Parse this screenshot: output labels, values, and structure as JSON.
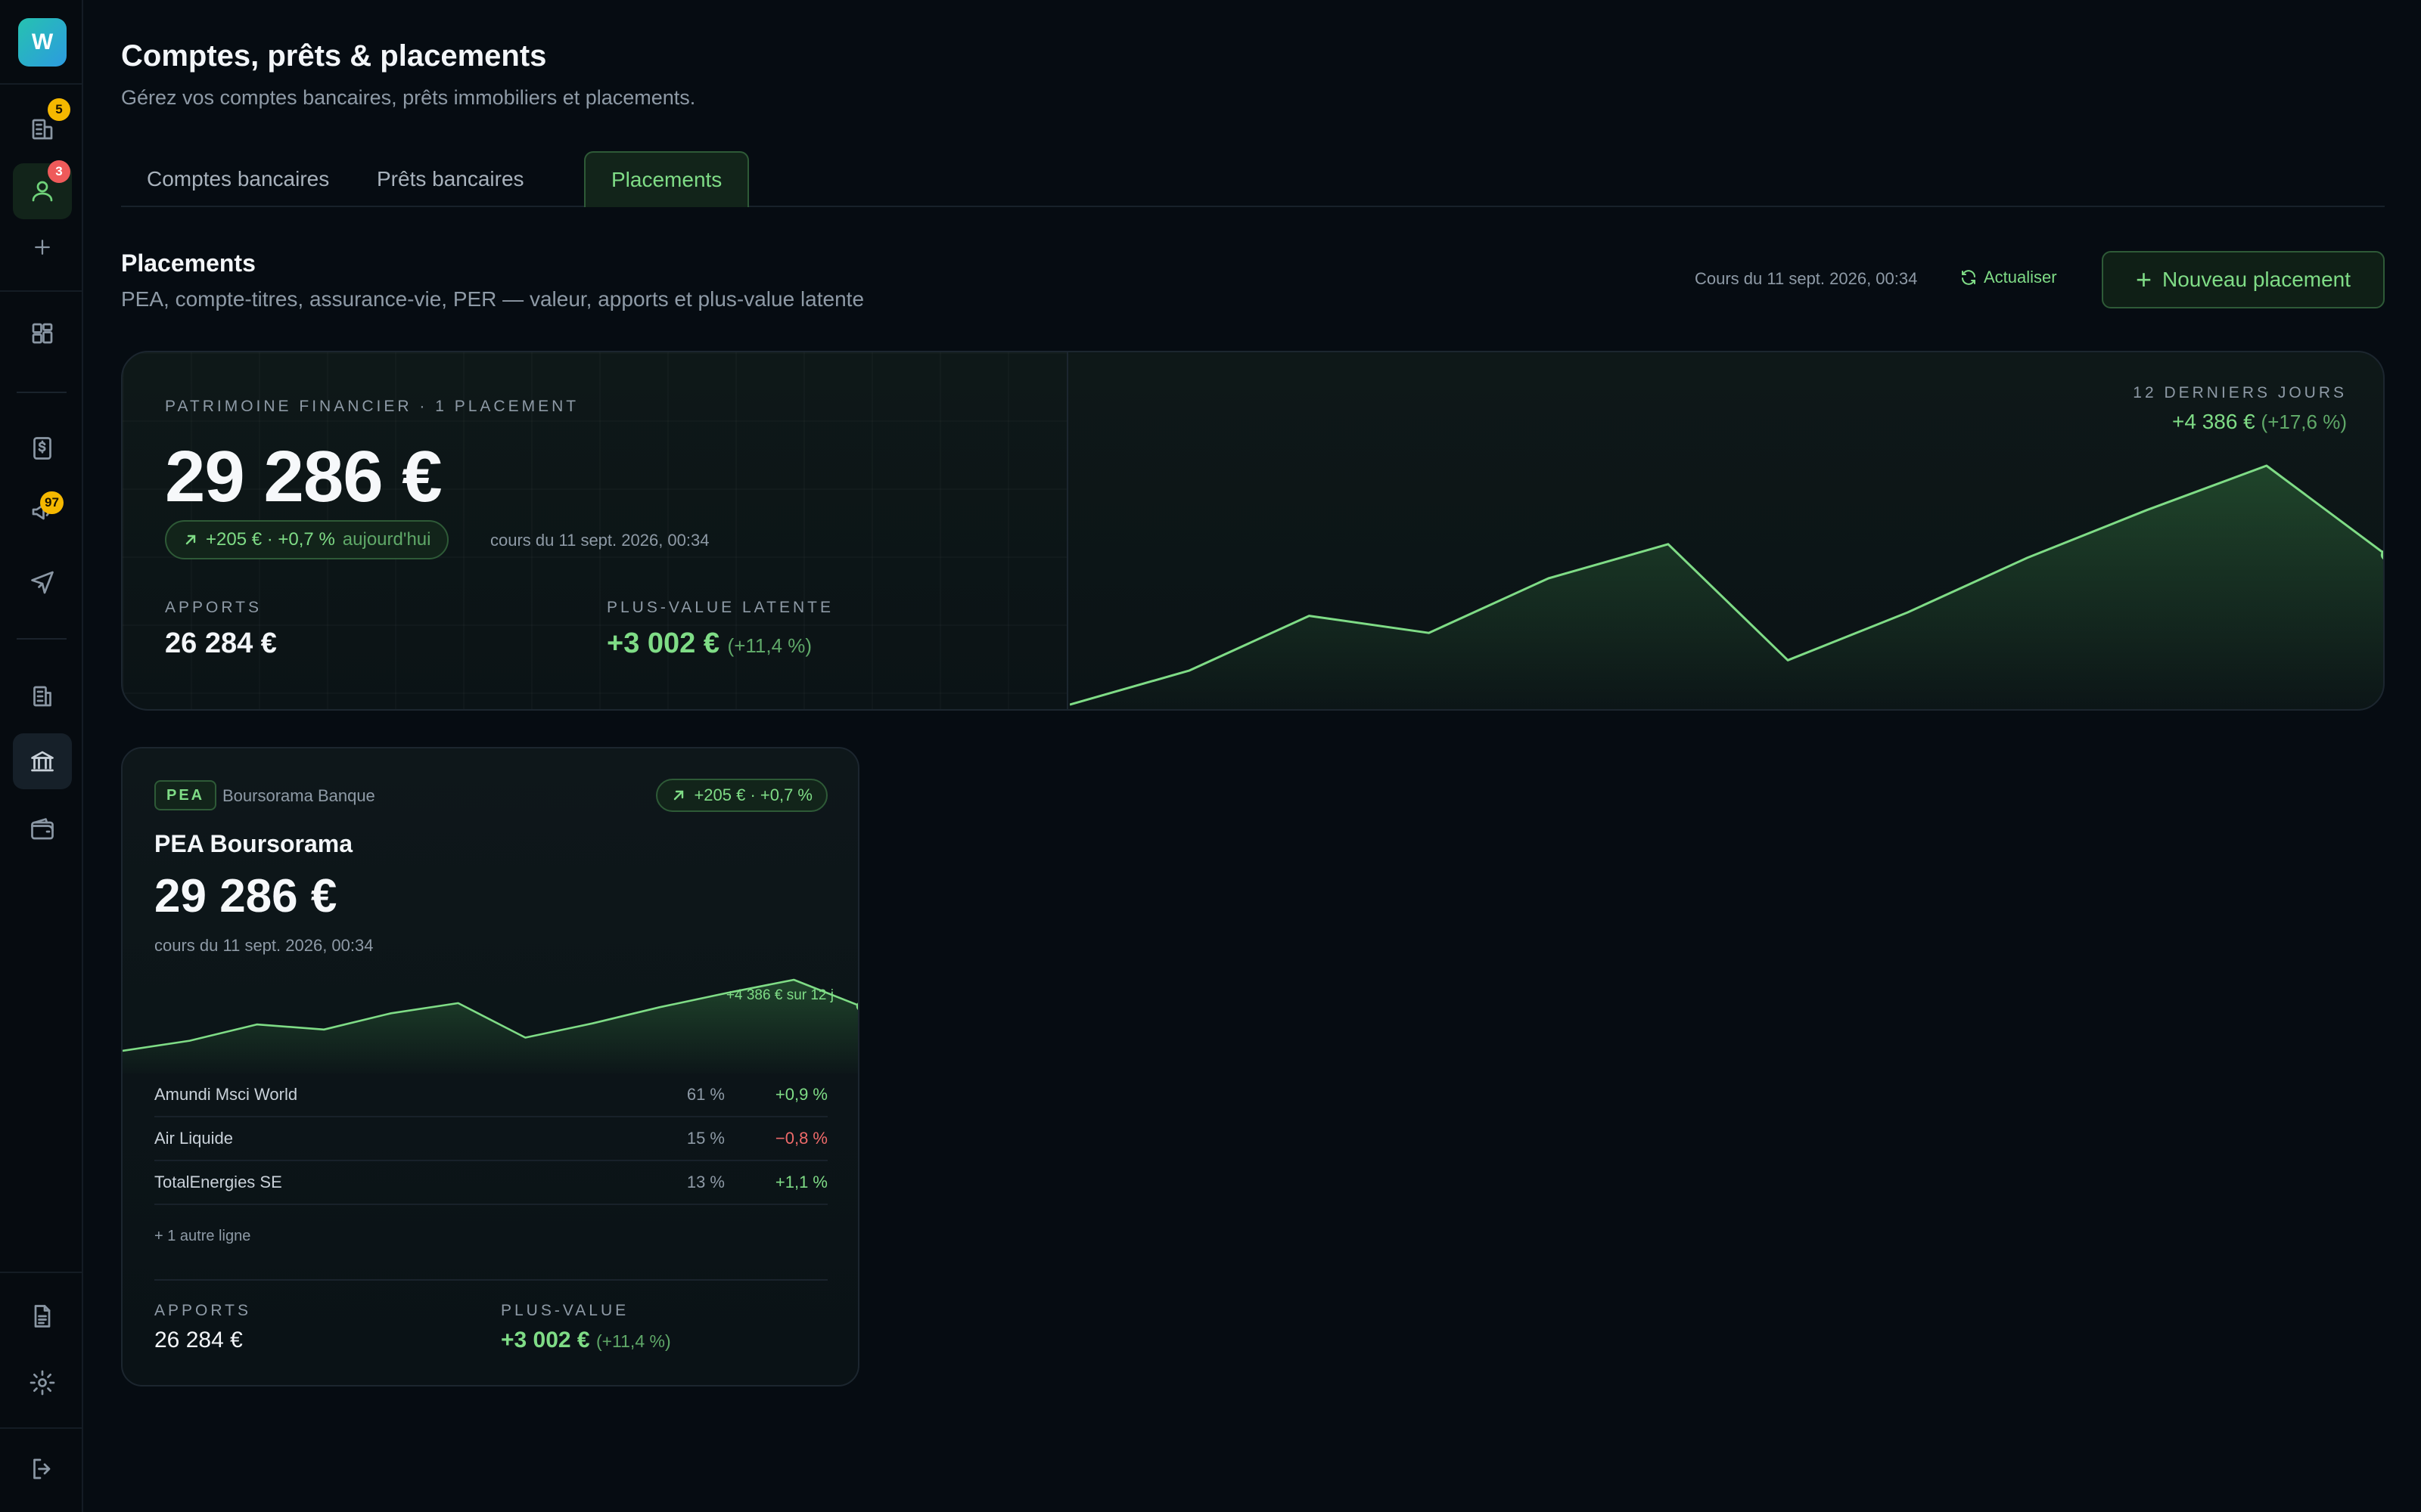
{
  "app": {
    "logo_letter": "W"
  },
  "sidebar": {
    "badges": {
      "buildings": "5",
      "user": "3",
      "marketing": "97"
    }
  },
  "header": {
    "title": "Comptes, prêts & placements",
    "subtitle": "Gérez vos comptes bancaires, prêts immobiliers et placements."
  },
  "tabs": [
    {
      "label": "Comptes bancaires",
      "active": false
    },
    {
      "label": "Prêts bancaires",
      "active": false
    },
    {
      "label": "Placements",
      "active": true
    }
  ],
  "section": {
    "title": "Placements",
    "subtitle": "PEA, compte-titres, assurance-vie, PER — valeur, apports et plus-value latente",
    "rates_date": "Cours du 11 sept. 2026, 00:34",
    "refresh_label": "Actualiser",
    "new_button_label": "Nouveau placement"
  },
  "summary": {
    "eyebrow": "PATRIMOINE FINANCIER · 1 PLACEMENT",
    "total": "29 286 €",
    "day_change": "+205 € · +0,7 %",
    "day_change_suffix": "aujourd'hui",
    "rate_note": "cours du 11 sept. 2026, 00:34",
    "contributions_label": "APPORTS",
    "contributions_value": "26 284 €",
    "gain_label": "PLUS-VALUE LATENTE",
    "gain_value": "+3 002 €",
    "gain_pct": "(+11,4 %)",
    "chart_period": "12 DERNIERS JOURS",
    "chart_gain": "+4 386 €",
    "chart_gain_pct": "(+17,6 %)"
  },
  "placement": {
    "tag": "PEA",
    "bank": "Boursorama Banque",
    "change": "+205 € · +0,7 %",
    "name": "PEA Boursorama",
    "value": "29 286 €",
    "rate_note": "cours du 11 sept. 2026, 00:34",
    "chart_label": "+4 386 € sur 12 j",
    "holdings": [
      {
        "name": "Amundi Msci World",
        "weight": "61 %",
        "change": "+0,9 %",
        "direction": "up"
      },
      {
        "name": "Air Liquide",
        "weight": "15 %",
        "change": "−0,8 %",
        "direction": "down"
      },
      {
        "name": "TotalEnergies SE",
        "weight": "13 %",
        "change": "+1,1 %",
        "direction": "up"
      }
    ],
    "more": "+ 1 autre ligne",
    "contributions_label": "APPORTS",
    "contributions_value": "26 284 €",
    "gain_label": "PLUS-VALUE",
    "gain_value": "+3 002 €",
    "gain_pct": "(+11,4 %)"
  },
  "chart_data": {
    "type": "area",
    "x": [
      1,
      2,
      3,
      4,
      5,
      6,
      7,
      8,
      9,
      10,
      11,
      12
    ],
    "values": [
      24900,
      25900,
      27500,
      27000,
      28600,
      29600,
      26200,
      27600,
      29200,
      30600,
      31900,
      29286
    ],
    "colors": {
      "line": "#7fdc86",
      "fill": "#2e6a3a"
    }
  },
  "colors": {
    "accent": "#7fdc86",
    "negative": "#ef6a6a",
    "background": "#060c12",
    "badge_yellow": "#f5b800",
    "badge_red": "#ef5a5a"
  }
}
